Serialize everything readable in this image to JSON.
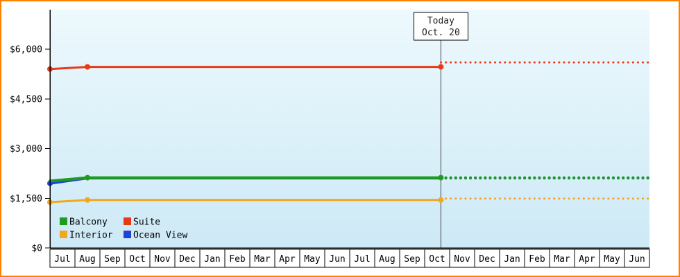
{
  "chart_data": {
    "type": "line",
    "title": "",
    "colors": {
      "border": "#ff8100",
      "plot_bg_top": "#edf9fd",
      "plot_bg_bottom": "#cde9f6",
      "axis": "#000000",
      "today_line": "#444444"
    },
    "y_axis": {
      "ticks": [
        {
          "label": "$0",
          "value": 0
        },
        {
          "label": "$1,500",
          "value": 1500
        },
        {
          "label": "$3,000",
          "value": 3000
        },
        {
          "label": "$4,500",
          "value": 4500
        },
        {
          "label": "$6,000",
          "value": 6000
        }
      ],
      "ylim": [
        0,
        7200
      ]
    },
    "months": [
      "Jul",
      "Aug",
      "Sep",
      "Oct",
      "Nov",
      "Dec",
      "Jan",
      "Feb",
      "Mar",
      "Apr",
      "May",
      "Jun",
      "Jul",
      "Aug",
      "Sep",
      "Oct",
      "Nov",
      "Dec",
      "Jan",
      "Feb",
      "Mar",
      "Apr",
      "May",
      "Jun"
    ],
    "today": {
      "lines": [
        "Today",
        "Oct. 20"
      ],
      "x": 15.65
    },
    "series": [
      {
        "id": "ocean-view",
        "name": "Ocean View",
        "color": "#2142d9",
        "width": 4,
        "solid": [
          [
            0,
            1950
          ],
          [
            1.5,
            2110
          ],
          [
            15.65,
            2110
          ]
        ],
        "dotted": [
          [
            15.65,
            2110
          ],
          [
            24,
            2110
          ]
        ],
        "markers": [
          [
            0,
            1950
          ]
        ]
      },
      {
        "id": "balcony",
        "name": "Balcony",
        "color": "#1e9c1e",
        "width": 4,
        "solid": [
          [
            0,
            2020
          ],
          [
            1.5,
            2120
          ],
          [
            15.65,
            2120
          ]
        ],
        "dotted": [
          [
            15.65,
            2120
          ],
          [
            24,
            2120
          ]
        ],
        "markers": [
          [
            1.5,
            2120
          ],
          [
            15.65,
            2120
          ]
        ]
      },
      {
        "id": "interior",
        "name": "Interior",
        "color": "#f2a71e",
        "width": 3,
        "solid": [
          [
            0,
            1380
          ],
          [
            1.5,
            1447
          ],
          [
            15.65,
            1447
          ]
        ],
        "dotted": [
          [
            15.65,
            1490
          ],
          [
            24,
            1490
          ]
        ],
        "markers": [
          [
            0,
            1380
          ],
          [
            1.5,
            1447
          ],
          [
            15.65,
            1447
          ]
        ]
      },
      {
        "id": "suite",
        "name": "Suite",
        "color": "#e93a17",
        "width": 3,
        "solid": [
          [
            0,
            5400
          ],
          [
            1.5,
            5465
          ],
          [
            15.65,
            5465
          ]
        ],
        "dotted": [
          [
            15.65,
            5600
          ],
          [
            24,
            5600
          ]
        ],
        "markers": [
          [
            0,
            5400
          ],
          [
            1.5,
            5465
          ],
          [
            15.65,
            5465
          ]
        ]
      }
    ],
    "legend": [
      {
        "id": "balcony",
        "label": "Balcony",
        "color": "#1e9c1e"
      },
      {
        "id": "suite",
        "label": "Suite",
        "color": "#e93a17"
      },
      {
        "id": "interior",
        "label": "Interior",
        "color": "#f2a71e"
      },
      {
        "id": "ocean-view",
        "label": "Ocean View",
        "color": "#2142d9"
      }
    ]
  }
}
